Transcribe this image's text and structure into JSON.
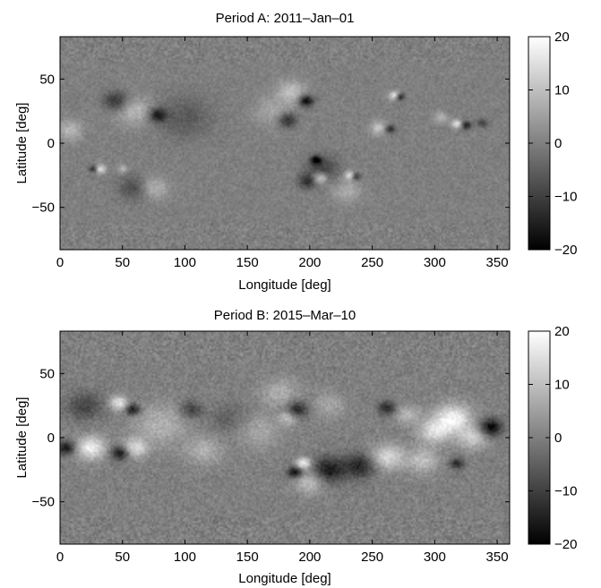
{
  "chart_data": [
    {
      "type": "heatmap",
      "title": "Period A: 2011–Jan–01",
      "xlabel": "Longitude [deg]",
      "ylabel": "Latitude [deg]",
      "xlim": [
        0,
        360
      ],
      "ylim": [
        -83,
        83
      ],
      "xticks": [
        0,
        50,
        100,
        150,
        200,
        250,
        300,
        350
      ],
      "yticks": [
        50,
        0,
        -50
      ],
      "ytick_labels": [
        "50",
        "0",
        "−50"
      ],
      "colorbar": {
        "range": [
          -20,
          20
        ],
        "ticks": [
          20,
          10,
          0,
          -10,
          -20
        ],
        "tick_labels": [
          "20",
          "10",
          "0",
          "−10",
          "−20"
        ],
        "colormap": "gray"
      },
      "features": [
        {
          "lon": 45,
          "lat": 33,
          "value": -12,
          "spread": 7
        },
        {
          "lon": 60,
          "lat": 25,
          "value": 9,
          "spread": 10
        },
        {
          "lon": 78,
          "lat": 22,
          "value": -16,
          "spread": 5
        },
        {
          "lon": 100,
          "lat": 20,
          "value": -6,
          "spread": 15
        },
        {
          "lon": 8,
          "lat": 10,
          "value": 9,
          "spread": 7
        },
        {
          "lon": 185,
          "lat": 40,
          "value": 10,
          "spread": 8
        },
        {
          "lon": 197,
          "lat": 33,
          "value": -20,
          "spread": 4
        },
        {
          "lon": 182,
          "lat": 18,
          "value": -14,
          "spread": 5
        },
        {
          "lon": 170,
          "lat": 25,
          "value": 6,
          "spread": 10
        },
        {
          "lon": 268,
          "lat": 37,
          "value": 18,
          "spread": 3
        },
        {
          "lon": 272,
          "lat": 36,
          "value": -18,
          "spread": 2.5
        },
        {
          "lon": 255,
          "lat": 12,
          "value": 10,
          "spread": 5
        },
        {
          "lon": 264,
          "lat": 11,
          "value": -14,
          "spread": 3
        },
        {
          "lon": 305,
          "lat": 20,
          "value": 8,
          "spread": 4
        },
        {
          "lon": 318,
          "lat": 15,
          "value": 16,
          "spread": 3
        },
        {
          "lon": 325,
          "lat": 14,
          "value": -16,
          "spread": 3
        },
        {
          "lon": 338,
          "lat": 16,
          "value": -10,
          "spread": 3
        },
        {
          "lon": 205,
          "lat": -13,
          "value": -18,
          "spread": 3
        },
        {
          "lon": 210,
          "lat": -20,
          "value": -10,
          "spread": 9
        },
        {
          "lon": 208,
          "lat": -27,
          "value": 16,
          "spread": 4
        },
        {
          "lon": 198,
          "lat": -30,
          "value": -12,
          "spread": 5
        },
        {
          "lon": 232,
          "lat": -25,
          "value": 14,
          "spread": 3
        },
        {
          "lon": 237,
          "lat": -26,
          "value": -14,
          "spread": 2.5
        },
        {
          "lon": 32,
          "lat": -20,
          "value": 16,
          "spread": 3
        },
        {
          "lon": 27,
          "lat": -20,
          "value": -14,
          "spread": 2.5
        },
        {
          "lon": 50,
          "lat": -20,
          "value": 8,
          "spread": 3
        },
        {
          "lon": 75,
          "lat": -35,
          "value": 9,
          "spread": 8
        },
        {
          "lon": 60,
          "lat": -35,
          "value": -8,
          "spread": 9
        },
        {
          "lon": 230,
          "lat": -37,
          "value": 7,
          "spread": 8
        }
      ]
    },
    {
      "type": "heatmap",
      "title": "Period B: 2015–Mar–10",
      "xlabel": "Longitude [deg]",
      "ylabel": "Latitude [deg]",
      "xlim": [
        0,
        360
      ],
      "ylim": [
        -83,
        83
      ],
      "xticks": [
        0,
        50,
        100,
        150,
        200,
        250,
        300,
        350
      ],
      "yticks": [
        50,
        0,
        -50
      ],
      "ytick_labels": [
        "50",
        "0",
        "−50"
      ],
      "colorbar": {
        "range": [
          -20,
          20
        ],
        "ticks": [
          20,
          10,
          0,
          -10,
          -20
        ],
        "tick_labels": [
          "20",
          "10",
          "0",
          "−10",
          "−20"
        ],
        "colormap": "gray"
      },
      "features": [
        {
          "lon": 20,
          "lat": 25,
          "value": -9,
          "spread": 10
        },
        {
          "lon": 47,
          "lat": 27,
          "value": 16,
          "spread": 5
        },
        {
          "lon": 58,
          "lat": 22,
          "value": -17,
          "spread": 4
        },
        {
          "lon": 105,
          "lat": 22,
          "value": -10,
          "spread": 6
        },
        {
          "lon": 80,
          "lat": 10,
          "value": 8,
          "spread": 14
        },
        {
          "lon": 25,
          "lat": -8,
          "value": 18,
          "spread": 8
        },
        {
          "lon": 5,
          "lat": -8,
          "value": -16,
          "spread": 5
        },
        {
          "lon": 48,
          "lat": -12,
          "value": -18,
          "spread": 5
        },
        {
          "lon": 60,
          "lat": -8,
          "value": 14,
          "spread": 7
        },
        {
          "lon": 115,
          "lat": -10,
          "value": 8,
          "spread": 10
        },
        {
          "lon": 190,
          "lat": 22,
          "value": -14,
          "spread": 6
        },
        {
          "lon": 183,
          "lat": 15,
          "value": 10,
          "spread": 5
        },
        {
          "lon": 176,
          "lat": 35,
          "value": 8,
          "spread": 10
        },
        {
          "lon": 160,
          "lat": 5,
          "value": 6,
          "spread": 12
        },
        {
          "lon": 195,
          "lat": -20,
          "value": 18,
          "spread": 4
        },
        {
          "lon": 188,
          "lat": -27,
          "value": -18,
          "spread": 4
        },
        {
          "lon": 215,
          "lat": -25,
          "value": -16,
          "spread": 9
        },
        {
          "lon": 240,
          "lat": -22,
          "value": -14,
          "spread": 9
        },
        {
          "lon": 262,
          "lat": -15,
          "value": 14,
          "spread": 9
        },
        {
          "lon": 200,
          "lat": -35,
          "value": 10,
          "spread": 8
        },
        {
          "lon": 262,
          "lat": 23,
          "value": -13,
          "spread": 5
        },
        {
          "lon": 278,
          "lat": 18,
          "value": 8,
          "spread": 7
        },
        {
          "lon": 215,
          "lat": 25,
          "value": 6,
          "spread": 9
        },
        {
          "lon": 315,
          "lat": 15,
          "value": 18,
          "spread": 10
        },
        {
          "lon": 300,
          "lat": 5,
          "value": 14,
          "spread": 9
        },
        {
          "lon": 330,
          "lat": 0,
          "value": 12,
          "spread": 8
        },
        {
          "lon": 345,
          "lat": 8,
          "value": -20,
          "spread": 6
        },
        {
          "lon": 318,
          "lat": -20,
          "value": -14,
          "spread": 4
        },
        {
          "lon": 290,
          "lat": -18,
          "value": 10,
          "spread": 9
        },
        {
          "lon": 135,
          "lat": 15,
          "value": -5,
          "spread": 10
        }
      ]
    }
  ]
}
